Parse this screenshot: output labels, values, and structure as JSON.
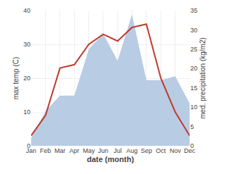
{
  "chart_data": {
    "type": "line",
    "xlabel": "date (month)",
    "ylabel": "max temp (C)",
    "y2label": "med. precipitation (kg/m2)",
    "categories": [
      "Jan",
      "Feb",
      "Mar",
      "Apr",
      "May",
      "Jun",
      "Jul",
      "Aug",
      "Sep",
      "Oct",
      "Nov",
      "Dec"
    ],
    "series": [
      {
        "type": "area",
        "color": "#b8cce4",
        "axis": "y2",
        "values": [
          2,
          9,
          13,
          13,
          25,
          29,
          22,
          34,
          17,
          17,
          18,
          11
        ]
      },
      {
        "type": "line",
        "color": "#c0392b",
        "values": [
          3,
          9,
          23,
          24,
          30,
          33,
          31,
          35,
          36,
          20,
          10,
          3
        ]
      }
    ],
    "ylim": [
      0,
      40
    ],
    "yticks": [
      0,
      10,
      20,
      30,
      40
    ],
    "y2lim": [
      0,
      35
    ],
    "y2ticks": [
      0,
      5,
      10,
      15,
      20,
      25,
      30,
      35
    ],
    "grid": true
  }
}
